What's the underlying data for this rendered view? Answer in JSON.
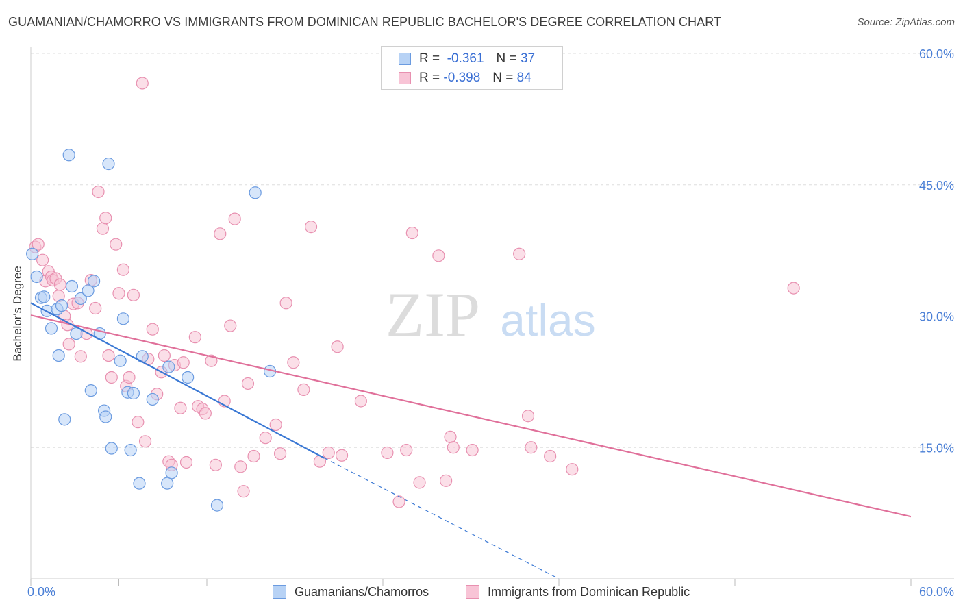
{
  "title": "GUAMANIAN/CHAMORRO VS IMMIGRANTS FROM DOMINICAN REPUBLIC BACHELOR'S DEGREE CORRELATION CHART",
  "source": "Source: ZipAtlas.com",
  "watermark": {
    "zip": "ZIP",
    "atlas": "atlas"
  },
  "colors": {
    "blue_fill": "#b7d2f5",
    "blue_stroke": "#6b9be0",
    "blue_line": "#3a78d4",
    "pink_fill": "#f8c4d6",
    "pink_stroke": "#e890b0",
    "pink_line": "#e0709a",
    "axis_text": "#4a7fd6",
    "grid": "#dddddd"
  },
  "legend": {
    "r_label": "R =",
    "n_label": "N =",
    "series1": {
      "r": "-0.361",
      "n": "37"
    },
    "series2": {
      "r": "-0.398",
      "n": "84"
    }
  },
  "bottom_legend": {
    "series1": "Guamanians/Chamorros",
    "series2": "Immigrants from Dominican Republic"
  },
  "chart_data": {
    "type": "scatter",
    "title": "GUAMANIAN/CHAMORRO VS IMMIGRANTS FROM DOMINICAN REPUBLIC BACHELOR'S DEGREE CORRELATION CHART",
    "xlabel": "",
    "ylabel": "Bachelor's Degree",
    "xlim": [
      0,
      60
    ],
    "ylim": [
      0,
      60
    ],
    "x_tick_labels": {
      "min": "0.0%",
      "max": "60.0%"
    },
    "y_ticks": [
      15,
      30,
      45,
      60
    ],
    "y_tick_labels": [
      "15.0%",
      "30.0%",
      "45.0%",
      "60.0%"
    ],
    "grid": true,
    "series": [
      {
        "name": "Guamanians/Chamorros",
        "r": -0.361,
        "n": 37,
        "points": [
          [
            0.1,
            37.1
          ],
          [
            0.4,
            34.5
          ],
          [
            0.7,
            32.1
          ],
          [
            0.9,
            32.2
          ],
          [
            1.1,
            30.6
          ],
          [
            1.4,
            28.6
          ],
          [
            1.8,
            30.8
          ],
          [
            1.9,
            25.5
          ],
          [
            2.1,
            31.2
          ],
          [
            2.3,
            18.2
          ],
          [
            2.6,
            48.4
          ],
          [
            2.8,
            33.4
          ],
          [
            3.1,
            28.0
          ],
          [
            3.4,
            32.0
          ],
          [
            3.9,
            32.9
          ],
          [
            4.1,
            21.5
          ],
          [
            4.3,
            34.0
          ],
          [
            4.7,
            28.0
          ],
          [
            5.0,
            19.2
          ],
          [
            5.1,
            18.5
          ],
          [
            5.3,
            47.4
          ],
          [
            5.5,
            14.9
          ],
          [
            6.1,
            24.9
          ],
          [
            6.3,
            29.7
          ],
          [
            6.8,
            14.7
          ],
          [
            6.6,
            21.3
          ],
          [
            7.4,
            10.9
          ],
          [
            7.6,
            25.4
          ],
          [
            8.3,
            20.5
          ],
          [
            9.3,
            10.9
          ],
          [
            9.4,
            24.2
          ],
          [
            9.6,
            12.1
          ],
          [
            10.7,
            23.0
          ],
          [
            12.7,
            8.4
          ],
          [
            15.3,
            44.1
          ],
          [
            16.3,
            23.7
          ],
          [
            7.0,
            21.2
          ]
        ],
        "trend": {
          "x1": 0,
          "y1": 31.5,
          "x2": 20.0,
          "y2": 13.8,
          "dash_x2": 36.0,
          "dash_y2": 0
        }
      },
      {
        "name": "Immigrants from Dominican Republic",
        "r": -0.398,
        "n": 84,
        "points": [
          [
            0.3,
            37.9
          ],
          [
            0.5,
            38.2
          ],
          [
            0.8,
            36.4
          ],
          [
            1.0,
            34.0
          ],
          [
            1.2,
            35.1
          ],
          [
            1.4,
            34.5
          ],
          [
            1.5,
            34.1
          ],
          [
            1.7,
            34.3
          ],
          [
            1.9,
            32.3
          ],
          [
            2.0,
            33.6
          ],
          [
            2.3,
            30.0
          ],
          [
            2.5,
            29.0
          ],
          [
            2.6,
            26.8
          ],
          [
            2.9,
            31.4
          ],
          [
            3.2,
            31.5
          ],
          [
            3.4,
            25.4
          ],
          [
            3.8,
            28.0
          ],
          [
            4.1,
            34.1
          ],
          [
            4.4,
            30.9
          ],
          [
            4.6,
            44.2
          ],
          [
            4.9,
            40.0
          ],
          [
            5.1,
            41.2
          ],
          [
            5.3,
            25.5
          ],
          [
            5.5,
            23.0
          ],
          [
            5.8,
            38.2
          ],
          [
            6.0,
            32.6
          ],
          [
            6.3,
            35.3
          ],
          [
            6.5,
            22.0
          ],
          [
            6.7,
            23.0
          ],
          [
            7.0,
            32.4
          ],
          [
            7.3,
            17.9
          ],
          [
            7.6,
            56.6
          ],
          [
            7.8,
            15.7
          ],
          [
            8.0,
            25.1
          ],
          [
            8.3,
            28.5
          ],
          [
            8.6,
            21.1
          ],
          [
            8.9,
            23.6
          ],
          [
            9.1,
            25.5
          ],
          [
            9.4,
            13.4
          ],
          [
            9.6,
            13.0
          ],
          [
            9.8,
            24.4
          ],
          [
            10.2,
            19.5
          ],
          [
            10.4,
            24.7
          ],
          [
            10.6,
            13.3
          ],
          [
            11.2,
            27.6
          ],
          [
            11.4,
            19.7
          ],
          [
            11.7,
            19.4
          ],
          [
            11.9,
            18.9
          ],
          [
            12.3,
            24.9
          ],
          [
            12.6,
            13.0
          ],
          [
            12.9,
            39.4
          ],
          [
            13.2,
            20.3
          ],
          [
            13.6,
            28.9
          ],
          [
            13.9,
            41.1
          ],
          [
            14.3,
            12.8
          ],
          [
            14.5,
            10.0
          ],
          [
            14.8,
            22.3
          ],
          [
            15.2,
            14.0
          ],
          [
            16.0,
            16.1
          ],
          [
            16.7,
            17.6
          ],
          [
            17.0,
            14.3
          ],
          [
            17.4,
            31.5
          ],
          [
            17.9,
            24.7
          ],
          [
            18.6,
            21.6
          ],
          [
            19.1,
            40.2
          ],
          [
            19.7,
            13.4
          ],
          [
            20.3,
            14.4
          ],
          [
            20.9,
            26.5
          ],
          [
            21.2,
            14.1
          ],
          [
            22.5,
            20.3
          ],
          [
            24.3,
            14.4
          ],
          [
            25.1,
            8.8
          ],
          [
            25.6,
            14.7
          ],
          [
            26.0,
            39.5
          ],
          [
            26.5,
            11.0
          ],
          [
            27.8,
            36.9
          ],
          [
            28.3,
            11.2
          ],
          [
            28.6,
            16.2
          ],
          [
            28.8,
            15.0
          ],
          [
            30.1,
            14.7
          ],
          [
            33.3,
            37.1
          ],
          [
            33.9,
            18.6
          ],
          [
            34.1,
            15.0
          ],
          [
            35.4,
            14.0
          ],
          [
            36.9,
            12.5
          ],
          [
            52.0,
            33.2
          ]
        ],
        "trend": {
          "x1": 0,
          "y1": 30.1,
          "x2": 60.0,
          "y2": 7.1
        }
      }
    ]
  }
}
